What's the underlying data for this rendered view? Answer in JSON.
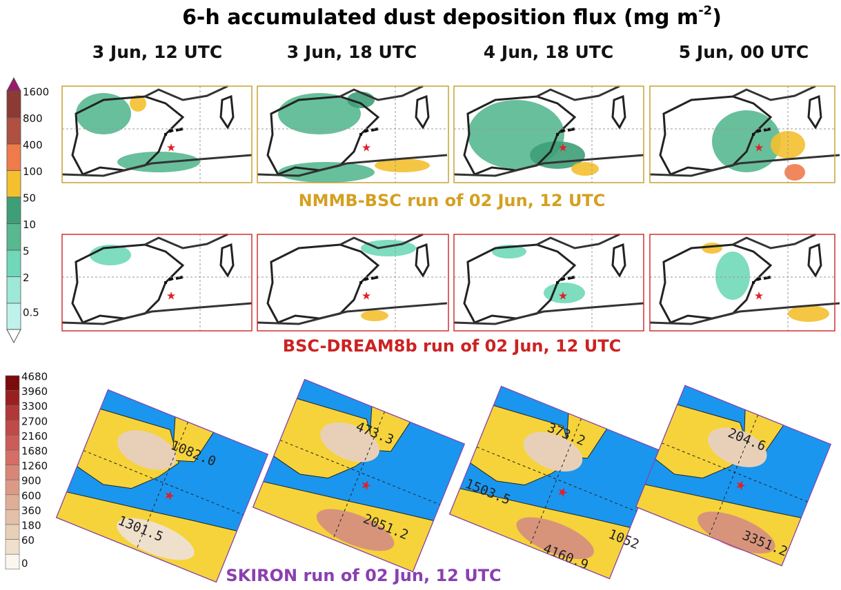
{
  "title": {
    "main": "6-h accumulated dust deposition flux (mg m",
    "sup": "-2",
    "end": ")"
  },
  "columns": [
    "3 Jun, 12 UTC",
    "3 Jun, 18 UTC",
    "4 Jun, 18 UTC",
    "5 Jun, 00 UTC"
  ],
  "rows": [
    {
      "label": "NMMB-BSC run of 02 Jun, 12 UTC"
    },
    {
      "label": "BSC-DREAM8b run of 02 Jun, 12 UTC"
    },
    {
      "label": "SKIRON run of 02 Jun, 12 UTC"
    }
  ],
  "colorbar_top": [
    1600,
    800,
    400,
    100,
    50,
    10,
    5,
    2,
    0.5
  ],
  "colorbar_bottom": [
    4680,
    3960,
    3300,
    2700,
    2160,
    1680,
    1260,
    900,
    600,
    360,
    180,
    60,
    0
  ],
  "skiron_labels": [
    [
      "1082.0",
      "1301.5"
    ],
    [
      "473.3",
      "2051.2"
    ],
    [
      "373.2",
      "1503.5",
      "4160.9",
      "1052"
    ],
    [
      "204.6",
      "3351.2"
    ]
  ]
}
